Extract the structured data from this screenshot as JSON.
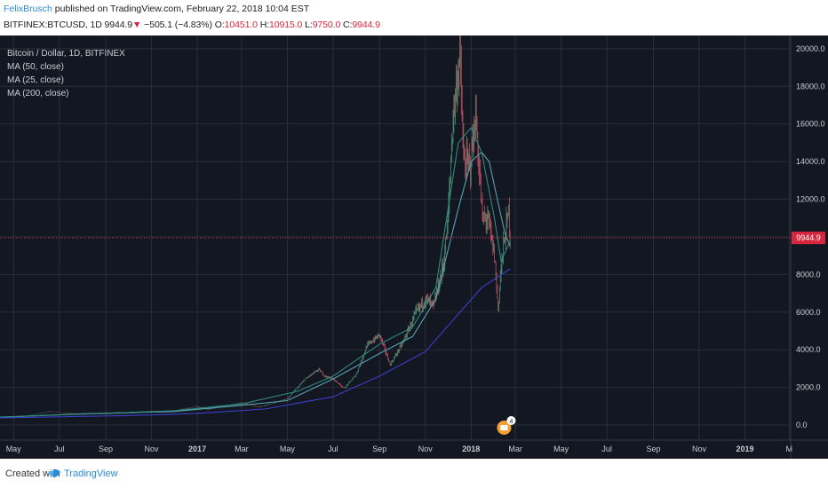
{
  "header": {
    "author": "FelixBrusch",
    "published_text": "published on TradingView.com, February 22, 2018 10:04 EST",
    "symbol": "BITFINEX:BTCUSD, 1D",
    "last": "9944.9",
    "change_arrow": "▼",
    "change": "−505.1 (−4.83%)",
    "open_label": "O:",
    "open": "10451.0",
    "high_label": "H:",
    "high": "10915.0",
    "low_label": "L:",
    "low": "9750.0",
    "close_label": "C:",
    "close": "9944.9"
  },
  "legend": {
    "title": "Bitcoin / Dollar, 1D, BITFINEX",
    "ma1": "MA (50, close)",
    "ma2": "MA (25, close)",
    "ma3": "MA (200, close)"
  },
  "footer": {
    "created_with": "Created with",
    "brand": "TradingView"
  },
  "colors": {
    "background": "#131722",
    "grid": "#2a2e39",
    "up": "#4a8f6f",
    "down": "#b9525e",
    "ma50": "#5aa0b0",
    "ma25": "#2f8b7f",
    "ma200": "#3b3fc8",
    "price_line": "#d7263d",
    "axis_text": "#c9ccd3"
  },
  "chart_data": {
    "type": "candlestick",
    "title": "Bitcoin / Dollar, 1D, BITFINEX",
    "last_price": 9944.9,
    "last_price_label": "9944.9",
    "y_ticks": [
      0,
      2000,
      4000,
      6000,
      8000,
      10000,
      12000,
      14000,
      16000,
      18000,
      20000
    ],
    "y_tick_labels": [
      "0.0",
      "2000.0",
      "4000.0",
      "6000.0",
      "8000.0",
      "10000.0",
      "12000.0",
      "14000.0",
      "16000.0",
      "18000.0",
      "20000.0"
    ],
    "ylim": [
      -800,
      20700
    ],
    "x_ticks": [
      {
        "label": "May",
        "date": "2016-05-01",
        "bold": false
      },
      {
        "label": "Jul",
        "date": "2016-07-01",
        "bold": false
      },
      {
        "label": "Sep",
        "date": "2016-09-01",
        "bold": false
      },
      {
        "label": "Nov",
        "date": "2016-11-01",
        "bold": false
      },
      {
        "label": "2017",
        "date": "2017-01-01",
        "bold": true
      },
      {
        "label": "Mar",
        "date": "2017-03-01",
        "bold": false
      },
      {
        "label": "May",
        "date": "2017-05-01",
        "bold": false
      },
      {
        "label": "Jul",
        "date": "2017-07-01",
        "bold": false
      },
      {
        "label": "Sep",
        "date": "2017-09-01",
        "bold": false
      },
      {
        "label": "Nov",
        "date": "2017-11-01",
        "bold": false
      },
      {
        "label": "2018",
        "date": "2018-01-01",
        "bold": true
      },
      {
        "label": "Mar",
        "date": "2018-03-01",
        "bold": false
      },
      {
        "label": "May",
        "date": "2018-05-01",
        "bold": false
      },
      {
        "label": "Jul",
        "date": "2018-07-01",
        "bold": false
      },
      {
        "label": "Sep",
        "date": "2018-09-01",
        "bold": false
      },
      {
        "label": "Nov",
        "date": "2018-11-01",
        "bold": false
      },
      {
        "label": "2019",
        "date": "2019-01-01",
        "bold": true
      },
      {
        "label": "M",
        "date": "2019-03-01",
        "bold": false
      }
    ],
    "xlim": [
      "2016-04-13",
      "2019-03-03"
    ],
    "price_path": [
      [
        "2016-04-13",
        420
      ],
      [
        "2016-05-15",
        450
      ],
      [
        "2016-06-17",
        720
      ],
      [
        "2016-07-01",
        670
      ],
      [
        "2016-08-01",
        560
      ],
      [
        "2016-09-01",
        580
      ],
      [
        "2016-10-01",
        610
      ],
      [
        "2016-11-01",
        720
      ],
      [
        "2016-12-01",
        760
      ],
      [
        "2017-01-01",
        990
      ],
      [
        "2017-01-15",
        820
      ],
      [
        "2017-02-01",
        980
      ],
      [
        "2017-03-01",
        1180
      ],
      [
        "2017-03-25",
        950
      ],
      [
        "2017-04-15",
        1200
      ],
      [
        "2017-05-01",
        1400
      ],
      [
        "2017-05-25",
        2450
      ],
      [
        "2017-06-12",
        2950
      ],
      [
        "2017-06-20",
        2600
      ],
      [
        "2017-07-01",
        2450
      ],
      [
        "2017-07-16",
        1950
      ],
      [
        "2017-08-01",
        2700
      ],
      [
        "2017-08-15",
        4200
      ],
      [
        "2017-09-01",
        4800
      ],
      [
        "2017-09-15",
        3200
      ],
      [
        "2017-10-01",
        4300
      ],
      [
        "2017-10-20",
        6000
      ],
      [
        "2017-11-01",
        6700
      ],
      [
        "2017-11-12",
        6300
      ],
      [
        "2017-11-25",
        8500
      ],
      [
        "2017-12-01",
        10800
      ],
      [
        "2017-12-08",
        16500
      ],
      [
        "2017-12-17",
        19600
      ],
      [
        "2017-12-22",
        14000
      ],
      [
        "2017-12-31",
        13800
      ],
      [
        "2018-01-07",
        16500
      ],
      [
        "2018-01-16",
        10900
      ],
      [
        "2018-01-23",
        11000
      ],
      [
        "2018-02-01",
        9000
      ],
      [
        "2018-02-06",
        6200
      ],
      [
        "2018-02-10",
        8400
      ],
      [
        "2018-02-15",
        10000
      ],
      [
        "2018-02-20",
        11300
      ],
      [
        "2018-02-22",
        9944.9
      ]
    ],
    "series": [
      {
        "name": "MA (50, close)",
        "values": [
          [
            "2016-04-13",
            410
          ],
          [
            "2016-08-01",
            600
          ],
          [
            "2016-12-01",
            720
          ],
          [
            "2017-03-01",
            1050
          ],
          [
            "2017-05-01",
            1300
          ],
          [
            "2017-07-01",
            2450
          ],
          [
            "2017-09-01",
            3800
          ],
          [
            "2017-10-15",
            4700
          ],
          [
            "2017-11-15",
            6700
          ],
          [
            "2017-12-15",
            11500
          ],
          [
            "2018-01-01",
            14000
          ],
          [
            "2018-01-15",
            14500
          ],
          [
            "2018-01-25",
            14000
          ],
          [
            "2018-02-05",
            12000
          ],
          [
            "2018-02-15",
            10200
          ],
          [
            "2018-02-22",
            9500
          ]
        ]
      },
      {
        "name": "MA (25, close)",
        "values": [
          [
            "2016-04-13",
            420
          ],
          [
            "2016-08-01",
            580
          ],
          [
            "2016-12-01",
            760
          ],
          [
            "2017-03-01",
            1120
          ],
          [
            "2017-05-15",
            1800
          ],
          [
            "2017-07-01",
            2600
          ],
          [
            "2017-09-01",
            4300
          ],
          [
            "2017-10-15",
            5200
          ],
          [
            "2017-11-15",
            7300
          ],
          [
            "2017-12-15",
            15000
          ],
          [
            "2018-01-01",
            15800
          ],
          [
            "2018-01-15",
            14500
          ],
          [
            "2018-02-01",
            11000
          ],
          [
            "2018-02-10",
            8700
          ],
          [
            "2018-02-22",
            9800
          ]
        ]
      },
      {
        "name": "MA (200, close)",
        "values": [
          [
            "2016-04-13",
            380
          ],
          [
            "2016-10-01",
            500
          ],
          [
            "2017-01-01",
            620
          ],
          [
            "2017-04-01",
            850
          ],
          [
            "2017-07-01",
            1500
          ],
          [
            "2017-09-01",
            2600
          ],
          [
            "2017-11-01",
            3900
          ],
          [
            "2017-12-15",
            5900
          ],
          [
            "2018-01-15",
            7300
          ],
          [
            "2018-02-22",
            8300
          ]
        ]
      }
    ]
  },
  "event_badge": {
    "count": "4"
  }
}
